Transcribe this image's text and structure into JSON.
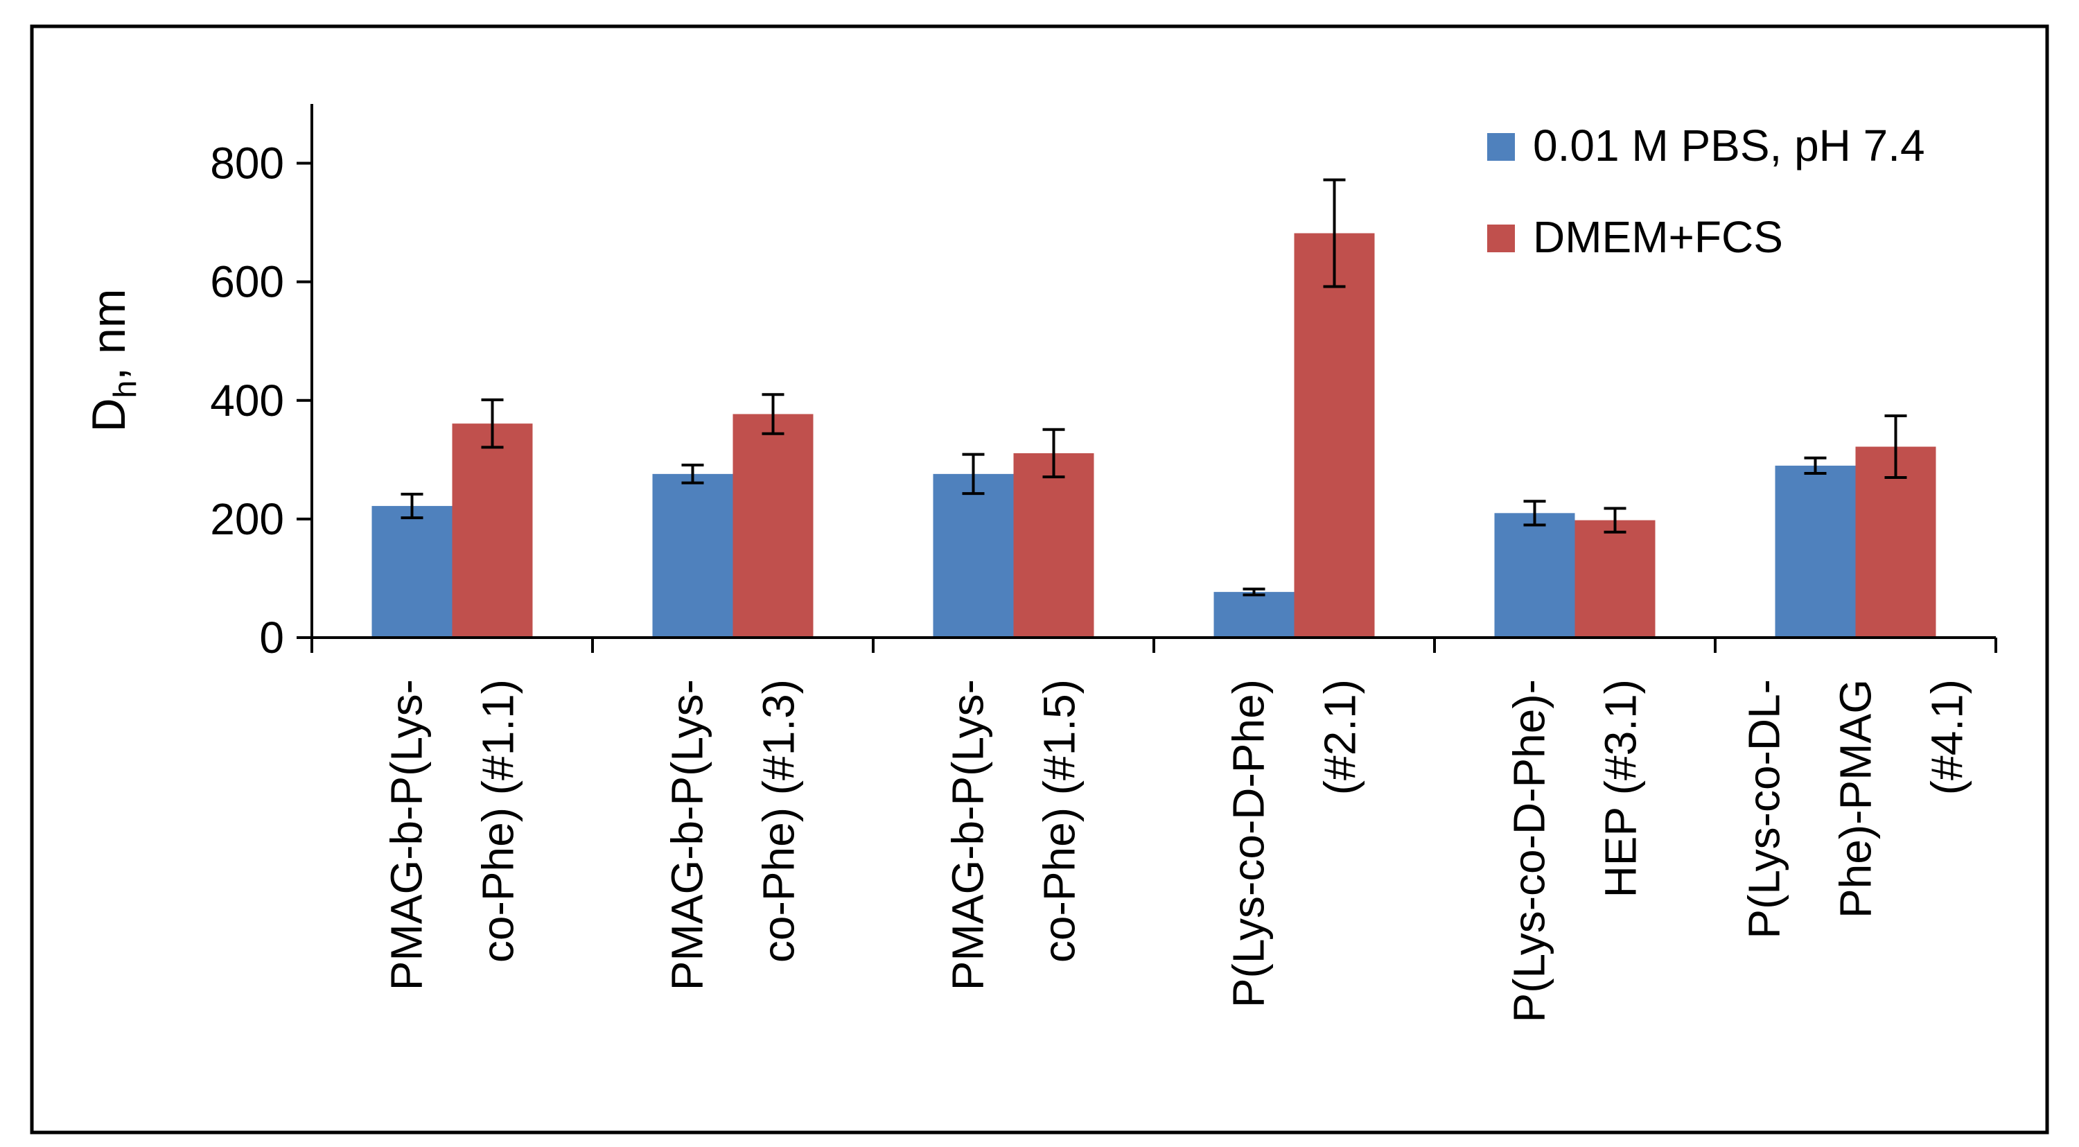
{
  "chart_data": {
    "type": "bar",
    "title": "",
    "xlabel": "",
    "ylabel": {
      "main": "D",
      "sub": "h",
      "rest": ", nm"
    },
    "ylim": [
      0,
      900
    ],
    "yticks": [
      0,
      200,
      400,
      600,
      800
    ],
    "grid": false,
    "legend_position": "top-right",
    "categories": [
      [
        "PMAG-b-P(Lys-",
        "co-Phe) (#1.1)"
      ],
      [
        "PMAG-b-P(Lys-",
        "co-Phe) (#1.3)"
      ],
      [
        "PMAG-b-P(Lys-",
        "co-Phe) (#1.5)"
      ],
      [
        "P(Lys-co-D-Phe)",
        "(#2.1)"
      ],
      [
        "P(Lys-co-D-Phe)-",
        "HEP (#3.1)"
      ],
      [
        "P(Lys-co-DL-",
        "Phe)-PMAG",
        "(#4.1)"
      ]
    ],
    "series": [
      {
        "name": "0.01 M PBS, pH 7.4",
        "color": "#4f81bd",
        "values": [
          222,
          276,
          276,
          77,
          210,
          290
        ],
        "errors": [
          20,
          15,
          33,
          5,
          20,
          13
        ]
      },
      {
        "name": "DMEM+FCS",
        "color": "#c0504d",
        "values": [
          361,
          377,
          311,
          682,
          198,
          322
        ],
        "errors": [
          40,
          33,
          40,
          90,
          20,
          52
        ]
      }
    ]
  }
}
